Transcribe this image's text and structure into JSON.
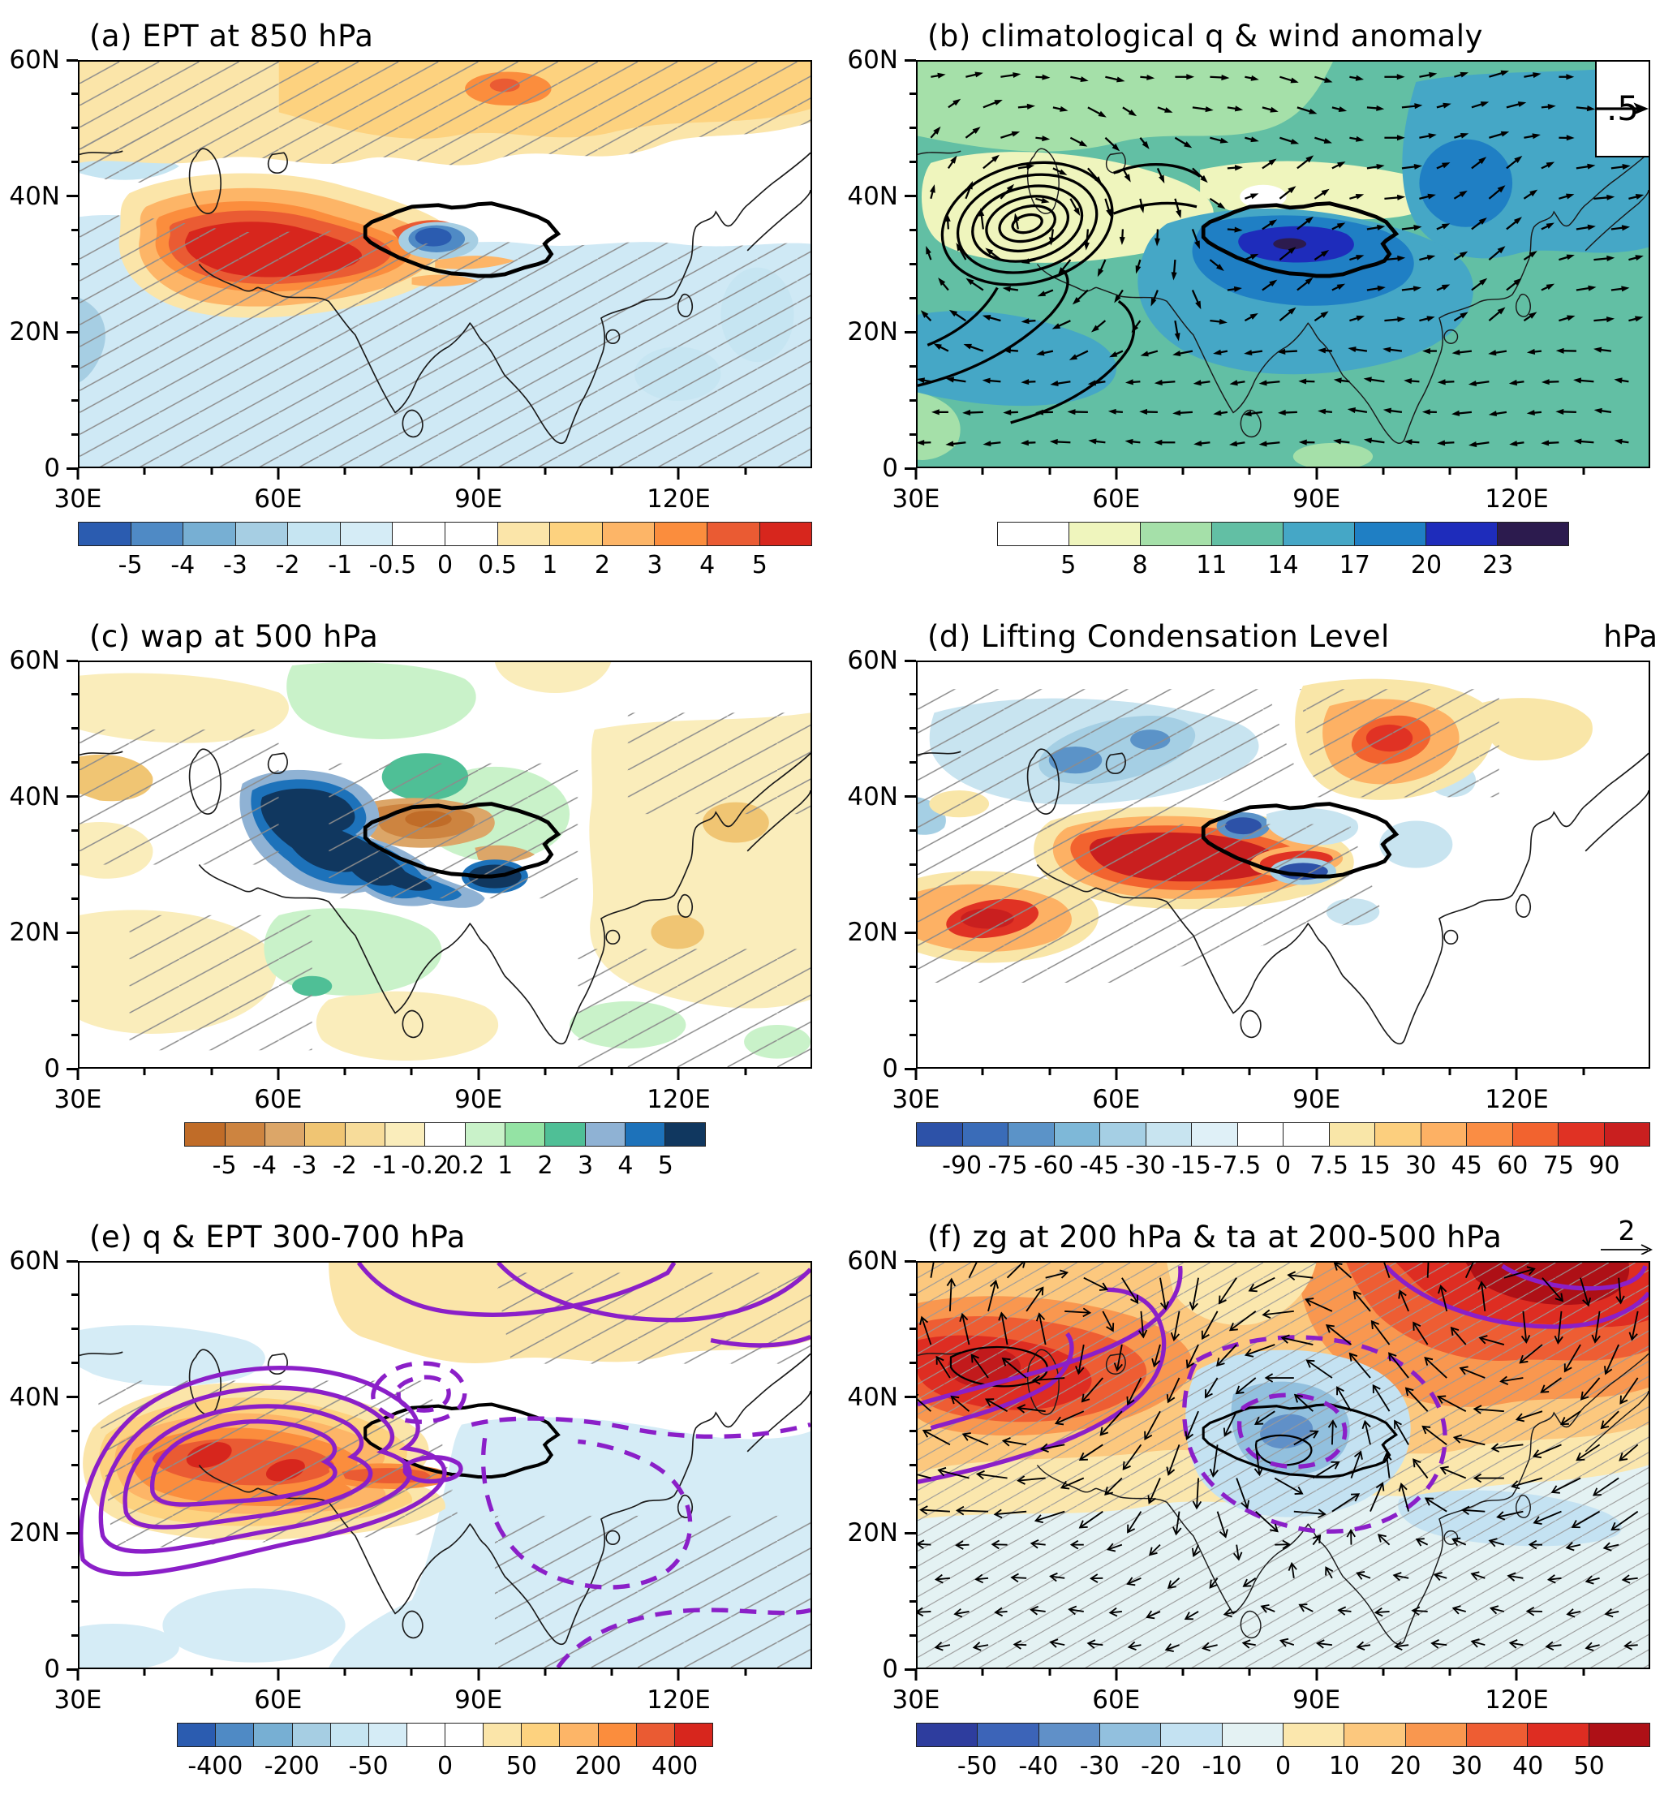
{
  "figure_name": "six-panel atmospheric anomaly maps over Asia",
  "map_extent": {
    "lon_range": [
      30,
      140
    ],
    "lat_range": [
      0,
      60
    ]
  },
  "axes": {
    "y_ticks": [
      {
        "label": "60N",
        "f": 0.0
      },
      {
        "label": "40N",
        "f": 0.3333
      },
      {
        "label": "20N",
        "f": 0.6667
      },
      {
        "label": "0",
        "f": 1.0
      }
    ],
    "y_minor": [
      0.0833,
      0.1667,
      0.25,
      0.4167,
      0.5,
      0.5833,
      0.75,
      0.8333,
      0.9167
    ],
    "x_ticks": [
      {
        "label": "30E",
        "f": 0.0
      },
      {
        "label": "60E",
        "f": 0.2727
      },
      {
        "label": "90E",
        "f": 0.5455
      },
      {
        "label": "120E",
        "f": 0.8182
      }
    ],
    "x_minor": [
      0.0909,
      0.1818,
      0.3636,
      0.4545,
      0.6364,
      0.7273,
      0.9091
    ]
  },
  "panels": [
    {
      "id": "a",
      "title": "(a) EPT at 850 hPa",
      "right_label": "",
      "colorbar": {
        "width_pct": 100,
        "colors": [
          "#2b5cb0",
          "#4f8ac5",
          "#77afd3",
          "#a6cee3",
          "#c6e5f2",
          "#d5ecf6",
          "#ffffff",
          "#ffffff",
          "#fbe5a9",
          "#fdd27f",
          "#fdb567",
          "#fb8d3d",
          "#ea5b33",
          "#d7261d"
        ],
        "labels": [
          {
            "t": "-5",
            "b": 1
          },
          {
            "t": "-4",
            "b": 2
          },
          {
            "t": "-3",
            "b": 3
          },
          {
            "t": "-2",
            "b": 4
          },
          {
            "t": "-1",
            "b": 5
          },
          {
            "t": "-0.5",
            "b": 6
          },
          {
            "t": "0",
            "b": 7
          },
          {
            "t": "0.5",
            "b": 8
          },
          {
            "t": "1",
            "b": 9
          },
          {
            "t": "2",
            "b": 10
          },
          {
            "t": "3",
            "b": 11
          },
          {
            "t": "4",
            "b": 12
          },
          {
            "t": "5",
            "b": 13
          }
        ]
      }
    },
    {
      "id": "b",
      "title": "(b) climatological q & wind anomaly",
      "right_label": "",
      "vector_legend": {
        "label": ".5"
      },
      "colorbar": {
        "width_pct": 78,
        "colors": [
          "#ffffff",
          "#eff5bd",
          "#a5e0a9",
          "#62bfa4",
          "#45a7c6",
          "#1f7fc4",
          "#1e2cbb",
          "#2c1b4e"
        ],
        "labels": [
          {
            "t": "5",
            "b": 1
          },
          {
            "t": "8",
            "b": 2
          },
          {
            "t": "11",
            "b": 3
          },
          {
            "t": "14",
            "b": 4
          },
          {
            "t": "17",
            "b": 5
          },
          {
            "t": "20",
            "b": 6
          },
          {
            "t": "23",
            "b": 7
          }
        ]
      }
    },
    {
      "id": "c",
      "title": "(c) wap at 500 hPa",
      "right_label": "",
      "colorbar": {
        "width_pct": 71,
        "colors": [
          "#c06c28",
          "#cd8440",
          "#dca668",
          "#f0c573",
          "#f7dc9a",
          "#faedbb",
          "#ffffff",
          "#c9f2c9",
          "#94e3a4",
          "#4fbf96",
          "#8fb2d4",
          "#1d72ba",
          "#10375f"
        ],
        "labels": [
          {
            "t": "-5",
            "b": 1
          },
          {
            "t": "-4",
            "b": 2
          },
          {
            "t": "-3",
            "b": 3
          },
          {
            "t": "-2",
            "b": 4
          },
          {
            "t": "-1",
            "b": 5
          },
          {
            "t": "-0.2",
            "b": 6
          },
          {
            "t": "0.2",
            "b": 7
          },
          {
            "t": "1",
            "b": 8
          },
          {
            "t": "2",
            "b": 9
          },
          {
            "t": "3",
            "b": 10
          },
          {
            "t": "4",
            "b": 11
          },
          {
            "t": "5",
            "b": 12
          }
        ]
      }
    },
    {
      "id": "d",
      "title": "(d) Lifting Condensation Level",
      "right_label": "hPa",
      "colorbar": {
        "width_pct": 100,
        "colors": [
          "#2d52a8",
          "#3a6cb8",
          "#5b93c8",
          "#7eb8d8",
          "#a5cfe4",
          "#c8e4f0",
          "#dff0f7",
          "#ffffff",
          "#ffffff",
          "#f9e6a8",
          "#fccf7e",
          "#fdb164",
          "#fa8d44",
          "#f2632f",
          "#e03224",
          "#c91f1f"
        ],
        "labels": [
          {
            "t": "-90",
            "b": 1
          },
          {
            "t": "-75",
            "b": 2
          },
          {
            "t": "-60",
            "b": 3
          },
          {
            "t": "-45",
            "b": 4
          },
          {
            "t": "-30",
            "b": 5
          },
          {
            "t": "-15",
            "b": 6
          },
          {
            "t": "-7.5",
            "b": 7
          },
          {
            "t": "0",
            "b": 8
          },
          {
            "t": "7.5",
            "b": 9
          },
          {
            "t": "15",
            "b": 10
          },
          {
            "t": "30",
            "b": 11
          },
          {
            "t": "45",
            "b": 12
          },
          {
            "t": "60",
            "b": 13
          },
          {
            "t": "75",
            "b": 14
          },
          {
            "t": "90",
            "b": 15
          }
        ]
      }
    },
    {
      "id": "e",
      "title": "(e) q & EPT 300-700 hPa",
      "right_label": "",
      "colorbar": {
        "width_pct": 73,
        "colors": [
          "#2b5cb0",
          "#4f8ac5",
          "#77afd3",
          "#a6cee3",
          "#c6e5f2",
          "#d5ecf6",
          "#ffffff",
          "#ffffff",
          "#fbe5a9",
          "#fdd27f",
          "#fdb567",
          "#fb8d3d",
          "#ea5b33",
          "#d7261d"
        ],
        "labels": [
          {
            "t": "-400",
            "b": 1
          },
          {
            "t": "-200",
            "b": 3
          },
          {
            "t": "-50",
            "b": 5
          },
          {
            "t": "0",
            "b": 7
          },
          {
            "t": "50",
            "b": 9
          },
          {
            "t": "200",
            "b": 11
          },
          {
            "t": "400",
            "b": 13
          }
        ]
      }
    },
    {
      "id": "f",
      "title": "(f) zg at 200 hPa & ta at 200-500 hPa",
      "right_label": "",
      "vector_legend": {
        "label": "2"
      },
      "colorbar": {
        "width_pct": 100,
        "colors": [
          "#2e3d9e",
          "#3c64b8",
          "#6090c8",
          "#92c0de",
          "#c4e2f2",
          "#e4f2f3",
          "#fbe7ad",
          "#fcc87e",
          "#f9974f",
          "#ee5d33",
          "#de2d22",
          "#ae1016"
        ],
        "labels": [
          {
            "t": "-50",
            "b": 1
          },
          {
            "t": "-40",
            "b": 2
          },
          {
            "t": "-30",
            "b": 3
          },
          {
            "t": "-20",
            "b": 4
          },
          {
            "t": "-10",
            "b": 5
          },
          {
            "t": "0",
            "b": 6
          },
          {
            "t": "10",
            "b": 7
          },
          {
            "t": "20",
            "b": 8
          },
          {
            "t": "30",
            "b": 9
          },
          {
            "t": "40",
            "b": 10
          },
          {
            "t": "50",
            "b": 11
          }
        ]
      }
    }
  ],
  "chart_data": [
    {
      "type": "heatmap",
      "panel": "a",
      "title": "(a) EPT at 850 hPa",
      "x": {
        "label": "longitude",
        "ticks": [
          "30E",
          "60E",
          "90E",
          "120E"
        ],
        "range": [
          30,
          140
        ]
      },
      "y": {
        "label": "latitude",
        "ticks": [
          "60N",
          "40N",
          "20N",
          "0"
        ],
        "range": [
          0,
          60
        ]
      },
      "levels": [
        -5,
        -4,
        -3,
        -2,
        -1,
        -0.5,
        0,
        0.5,
        1,
        2,
        3,
        4,
        5
      ],
      "palette": [
        "#2b5cb0",
        "#4f8ac5",
        "#77afd3",
        "#a6cee3",
        "#c6e5f2",
        "#d5ecf6",
        "#ffffff",
        "#ffffff",
        "#fbe5a9",
        "#fdd27f",
        "#fdb567",
        "#fb8d3d",
        "#ea5b33",
        "#d7261d"
      ],
      "features": [
        "strong positive EPT anomaly (>5) centered ~45-70E, 22-35N",
        "negative anomaly core (-4 to -2) ~78-88E, 31-35N over western Tibetan Plateau",
        "weak positive band (0.5-2) across 45-60N with orange core near 95E, 55N",
        "weak negative anomaly (-1 to -0.5) over most of Asia south of ~35N"
      ],
      "overlays": [
        "gray hatching (significance)",
        "bold black Tibetan Plateau outline",
        "thin coastlines"
      ]
    },
    {
      "type": "heatmap",
      "panel": "b",
      "title": "(b) climatological q & wind anomaly",
      "x": {
        "label": "longitude",
        "ticks": [
          "30E",
          "60E",
          "90E",
          "120E"
        ],
        "range": [
          30,
          140
        ]
      },
      "y": {
        "label": "latitude",
        "ticks": [
          "60N",
          "40N",
          "20N",
          "0"
        ],
        "range": [
          0,
          60
        ]
      },
      "levels": [
        5,
        8,
        11,
        14,
        17,
        20,
        23
      ],
      "palette": [
        "#ffffff",
        "#eff5bd",
        "#a5e0a9",
        "#62bfa4",
        "#45a7c6",
        "#1f7fc4",
        "#1e2cbb",
        "#2c1b4e"
      ],
      "reference_vector": 0.5,
      "features": [
        "climatological q mostly 11-17 over domain",
        "q maximum (>23) near 80-88E, 32-34N south of Tibetan Plateau",
        "dry region (5-8) ~35-47N west of 75E around closed anticyclonic streamlines centered ~47E, 35N",
        "moist band (14-20) over NE domain 100-125E, 30-50N and SW coastal band",
        "black wind-anomaly vectors over whole map"
      ],
      "overlays": [
        "closed black streamlines",
        "wind vectors",
        "bold plateau outline",
        "white reference-vector box (.5)"
      ]
    },
    {
      "type": "heatmap",
      "panel": "c",
      "title": "(c) wap at 500 hPa",
      "x": {
        "label": "longitude",
        "ticks": [
          "30E",
          "60E",
          "90E",
          "120E"
        ],
        "range": [
          30,
          140
        ]
      },
      "y": {
        "label": "latitude",
        "ticks": [
          "60N",
          "40N",
          "20N",
          "0"
        ],
        "range": [
          0,
          60
        ]
      },
      "levels": [
        -5,
        -4,
        -3,
        -2,
        -1,
        -0.2,
        0.2,
        1,
        2,
        3,
        4,
        5
      ],
      "palette": [
        "#c06c28",
        "#cd8440",
        "#dca668",
        "#f0c573",
        "#f7dc9a",
        "#faedbb",
        "#ffffff",
        "#c9f2c9",
        "#94e3a4",
        "#4fbf96",
        "#8fb2d4",
        "#1d72ba",
        "#10375f"
      ],
      "features": [
        "dark blue maximum (>5) elongated ~48-62E, 33-40N with tongue along southern plateau flank to ~85E, 27N",
        "brown negative region (-3 to -1) over plateau interior ~65-90E, 30-38N",
        "teal positive cell (~2-3) near 82E, 42N",
        "scattered weak pale-yellow (-1 to -0.2) and light-green (0.2-1) patches elsewhere"
      ],
      "overlays": [
        "sparse gray hatching",
        "bold plateau outline",
        "coastlines"
      ]
    },
    {
      "type": "heatmap",
      "panel": "d",
      "title": "(d) Lifting Condensation Level",
      "units": "hPa",
      "x": {
        "label": "longitude",
        "ticks": [
          "30E",
          "60E",
          "90E",
          "120E"
        ],
        "range": [
          30,
          140
        ]
      },
      "y": {
        "label": "latitude",
        "ticks": [
          "60N",
          "40N",
          "20N",
          "0"
        ],
        "range": [
          0,
          60
        ]
      },
      "levels": [
        -90,
        -75,
        -60,
        -45,
        -30,
        -15,
        -7.5,
        0,
        7.5,
        15,
        30,
        45,
        60,
        75,
        90
      ],
      "palette": [
        "#2d52a8",
        "#3a6cb8",
        "#5b93c8",
        "#7eb8d8",
        "#a5cfe4",
        "#c8e4f0",
        "#dff0f7",
        "#ffffff",
        "#ffffff",
        "#f9e6a8",
        "#fccf7e",
        "#fdb164",
        "#fa8d44",
        "#f2632f",
        "#e03224",
        "#c91f1f"
      ],
      "features": [
        "strong positive anomaly (>90) band ~45-75E, 27-35N extending east along plateau",
        "secondary positive maximum ~85-95E, 42-50N",
        "positive maximum ~32-50E, 15-25N",
        "negative (blue) region ~42-72E, 38-52N with cores ~-45",
        "small strong negative cores within plateau near 75E 36N and 83E 29N"
      ],
      "overlays": [
        "gray hatching",
        "bold plateau outline",
        "coastlines"
      ]
    },
    {
      "type": "heatmap",
      "panel": "e",
      "title": "(e) q & EPT 300-700 hPa",
      "x": {
        "label": "longitude",
        "ticks": [
          "30E",
          "60E",
          "90E",
          "120E"
        ],
        "range": [
          30,
          140
        ]
      },
      "y": {
        "label": "latitude",
        "ticks": [
          "60N",
          "40N",
          "20N",
          "0"
        ],
        "range": [
          0,
          60
        ]
      },
      "levels": [
        -400,
        -200,
        -50,
        0,
        50,
        200,
        400
      ],
      "palette": [
        "#2b5cb0",
        "#4f8ac5",
        "#77afd3",
        "#a6cee3",
        "#c6e5f2",
        "#d5ecf6",
        "#ffffff",
        "#ffffff",
        "#fbe5a9",
        "#fdd27f",
        "#fdb567",
        "#fb8d3d",
        "#ea5b33",
        "#d7261d"
      ],
      "contour_color": "#8b1fc8",
      "features": [
        "positive q anomaly (200 to >400) tilted SW-NE over ~35-70E, 18-38N with red cores near 50E 32N and 60E 29N",
        "negative anomaly (~-50) over India, Southeast and East Asia and patch NW of Caspian",
        "pale yellow band (~50) along 45-60N east of 65E",
        "purple solid contours: nested positive EPT anomaly centered ~50E, 30N",
        "purple dashed contours: negative EPT anomaly near 78E, 38N and broad over S/E Asia"
      ],
      "overlays": [
        "purple solid and dashed EPT contours",
        "gray hatching",
        "bold plateau outline"
      ]
    },
    {
      "type": "heatmap",
      "panel": "f",
      "title": "(f) zg at 200 hPa & ta at 200-500 hPa",
      "x": {
        "label": "longitude",
        "ticks": [
          "30E",
          "60E",
          "90E",
          "120E"
        ],
        "range": [
          30,
          140
        ]
      },
      "y": {
        "label": "latitude",
        "ticks": [
          "60N",
          "40N",
          "20N",
          "0"
        ],
        "range": [
          0,
          60
        ]
      },
      "levels": [
        -50,
        -40,
        -30,
        -20,
        -10,
        0,
        10,
        20,
        30,
        40,
        50
      ],
      "palette": [
        "#2e3d9e",
        "#3c64b8",
        "#6090c8",
        "#92c0de",
        "#c4e2f2",
        "#e4f2f3",
        "#fbe7ad",
        "#fcc87e",
        "#f9974f",
        "#ee5d33",
        "#de2d22",
        "#ae1016"
      ],
      "reference_vector": 2,
      "contour_color": "#8b1fc8",
      "features": [
        "positive zg anomaly (orange/red) north of ~40N, maxima >50 near 100-125E 52-60N and 33-45E 38-47N",
        "negative zg anomaly (blue, -20 to -30) centered ~78-90E, 30-42N over plateau",
        "weak negative shading (-10 to 0) south of ~22N",
        "purple solid contours: positive ta anomaly; purple dashed: negative ta anomaly around plateau low",
        "long black wind-anomaly vectors, reference 2"
      ],
      "overlays": [
        "dense gray hatching",
        "purple contours",
        "plateau outline",
        "wind vectors"
      ]
    }
  ]
}
